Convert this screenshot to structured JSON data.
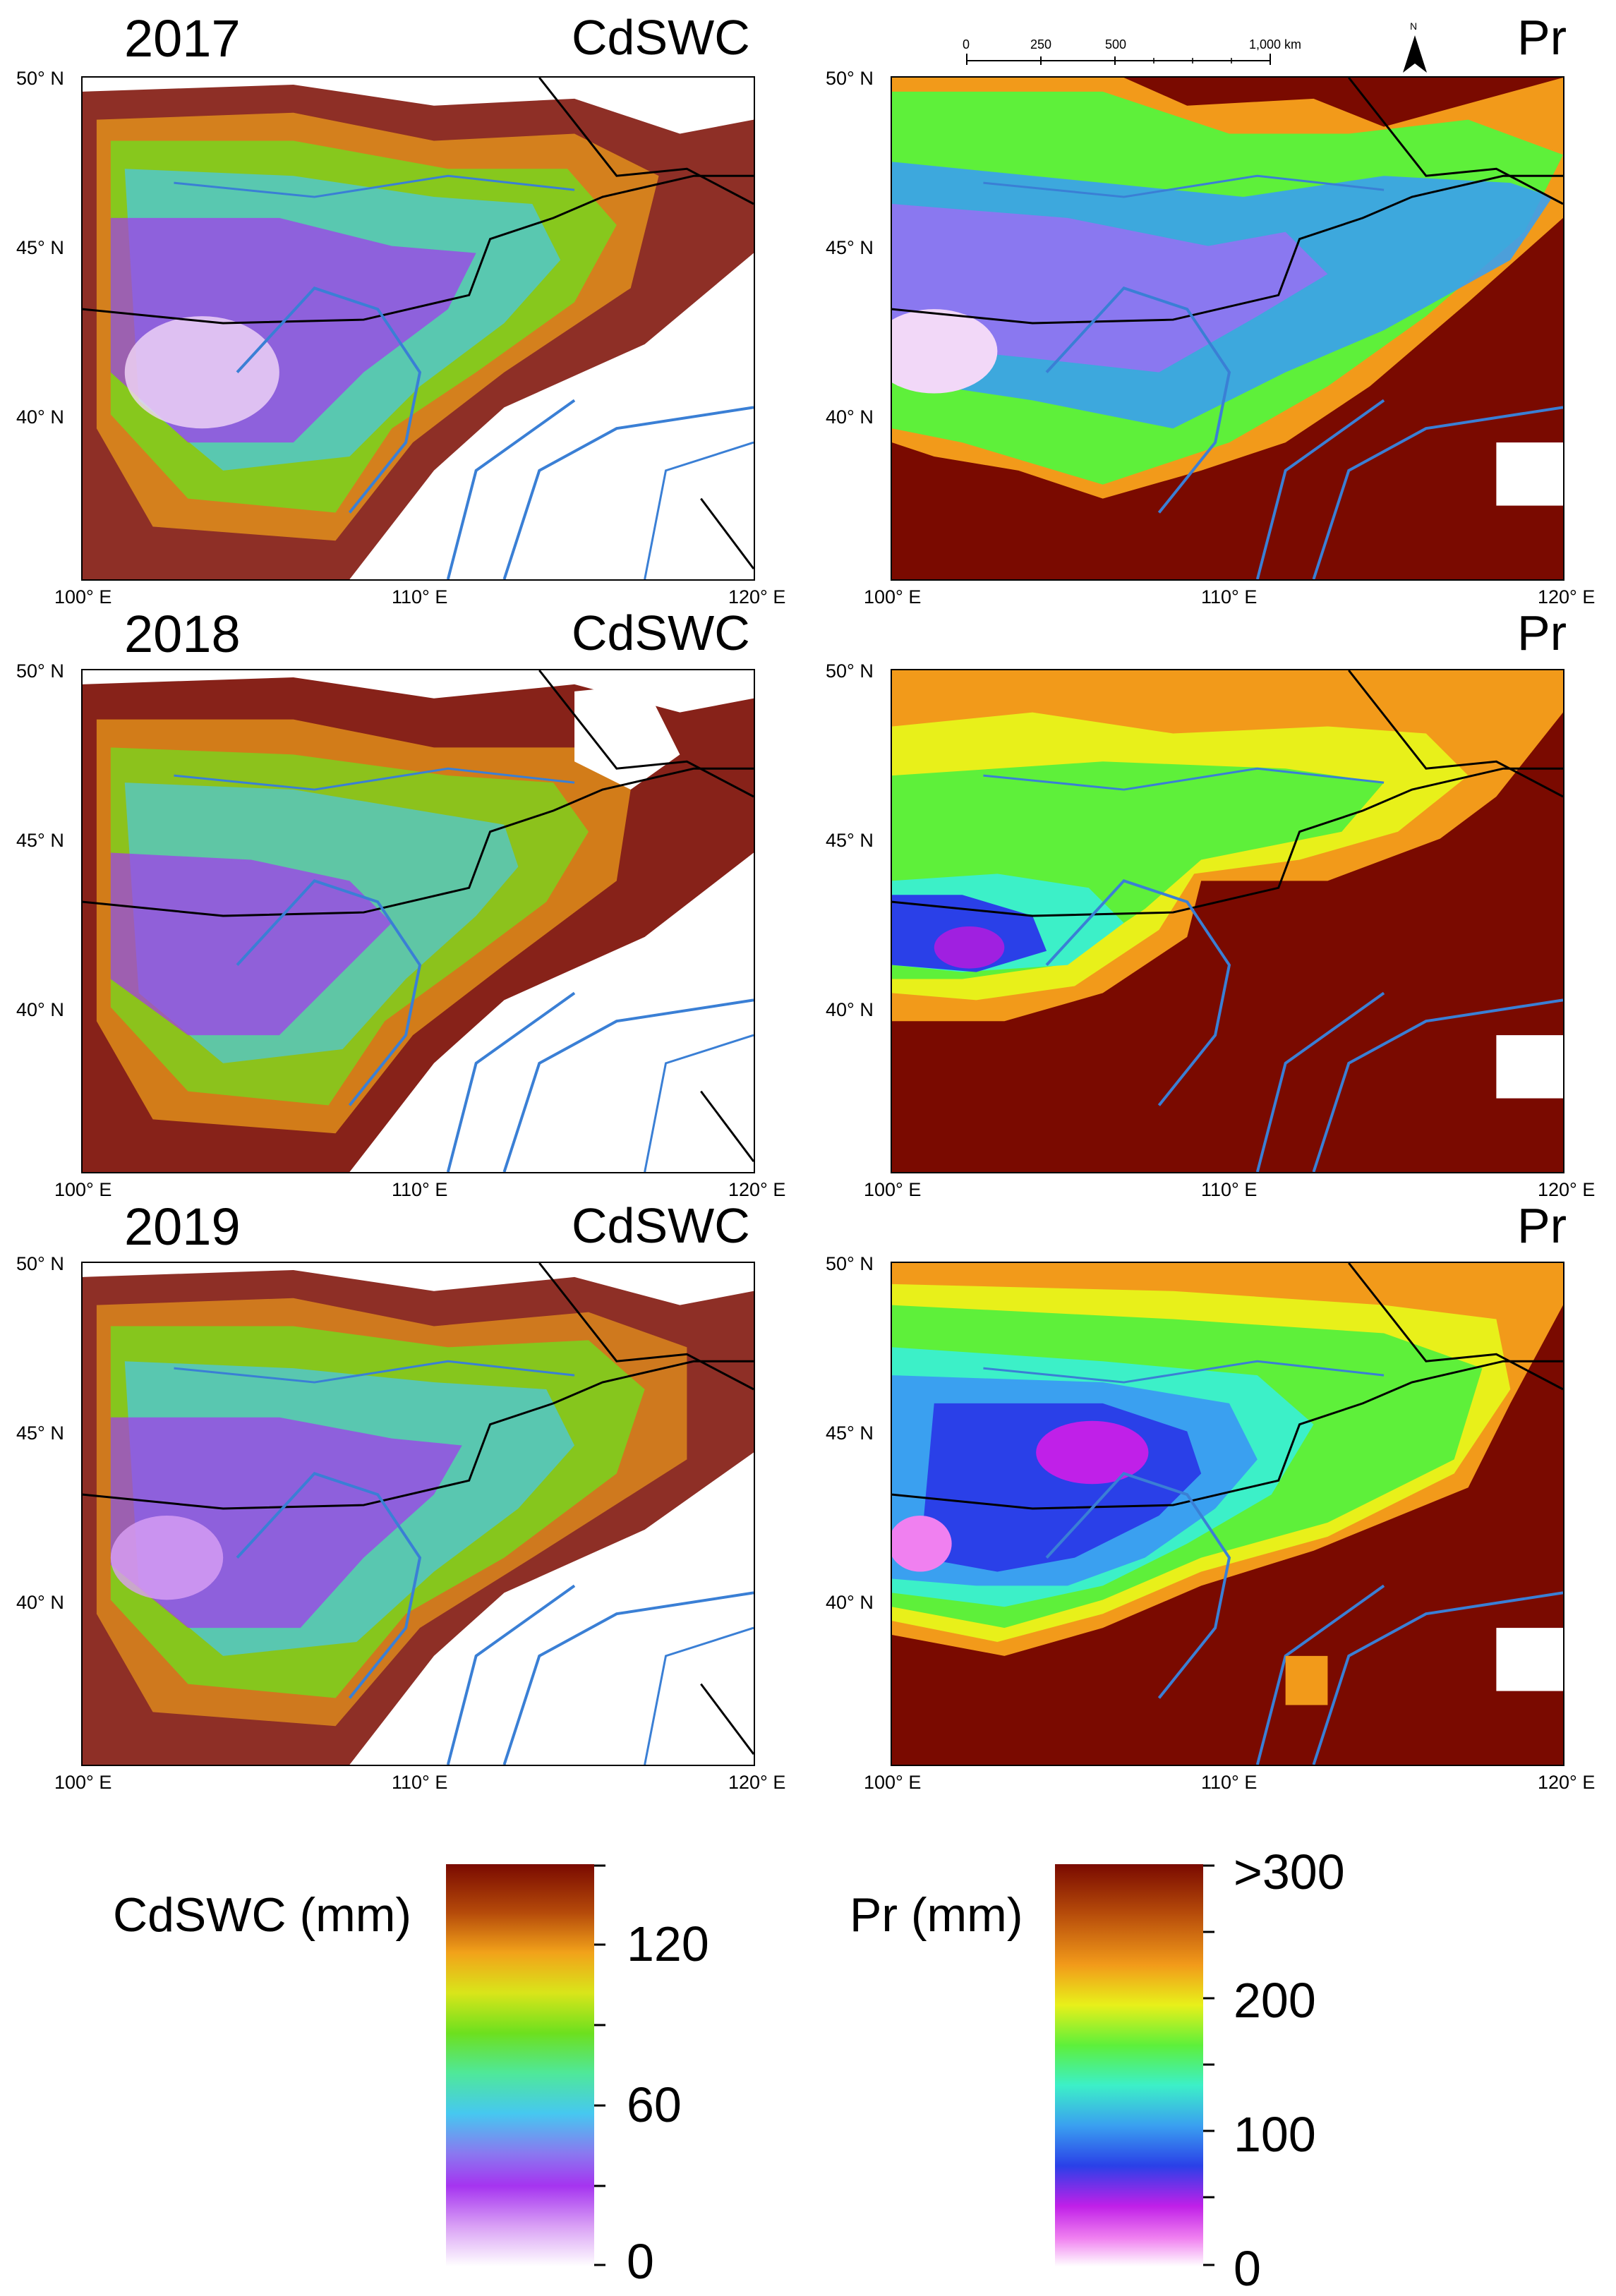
{
  "rows": [
    {
      "year": "2017",
      "left_var": "CdSWC",
      "right_var": "Pr"
    },
    {
      "year": "2018",
      "left_var": "CdSWC",
      "right_var": "Pr"
    },
    {
      "year": "2019",
      "left_var": "CdSWC",
      "right_var": "Pr"
    }
  ],
  "axes": {
    "lat_ticks": [
      {
        "deg": "50°",
        "hemi": "N"
      },
      {
        "deg": "45°",
        "hemi": "N"
      },
      {
        "deg": "40°",
        "hemi": "N"
      }
    ],
    "lon_ticks": [
      {
        "deg": "100°",
        "hemi": "E"
      },
      {
        "deg": "110°",
        "hemi": "E"
      },
      {
        "deg": "120°",
        "hemi": "E"
      }
    ]
  },
  "scale_bar": {
    "labels": [
      "0",
      "250",
      "500",
      "1,000 km"
    ],
    "north": "N"
  },
  "colorbars": {
    "cdswc": {
      "title": "CdSWC (mm)",
      "labels": [
        "120",
        "60",
        "0"
      ]
    },
    "pr": {
      "title": "Pr (mm)",
      "labels": [
        ">300",
        "200",
        "100",
        "0"
      ]
    }
  },
  "colors": {
    "river": "#3a7fd5",
    "border": "#000000",
    "high": "#7a0a00",
    "low": "#fdf0ff"
  }
}
